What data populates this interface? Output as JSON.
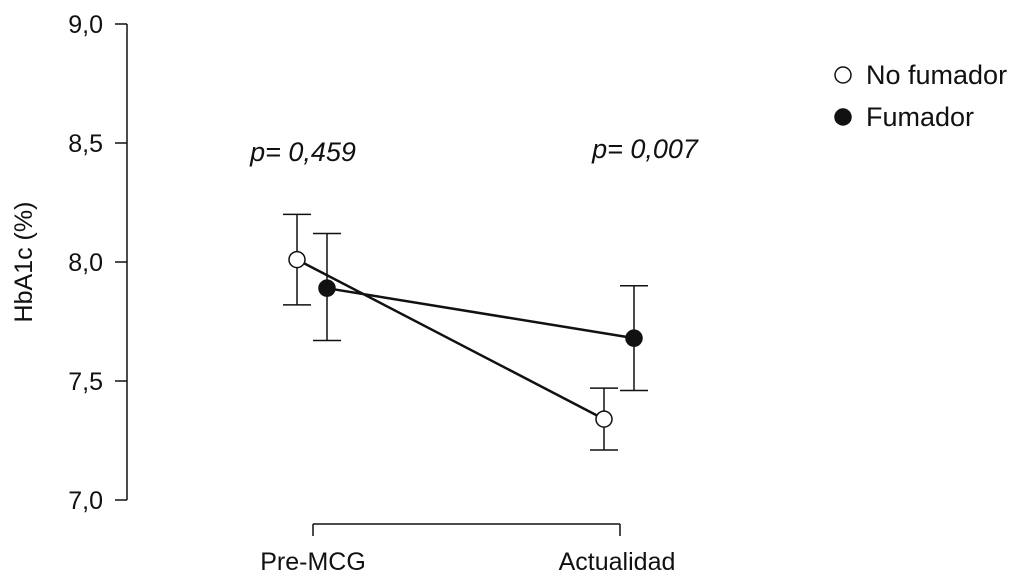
{
  "chart_data": {
    "type": "line",
    "ylabel": "HbA1c (%)",
    "xlabel": "",
    "categories": [
      "Pre-MCG",
      "Actualidad"
    ],
    "ylim": [
      7.0,
      9.0
    ],
    "yticks": [
      "7,0",
      "7,5",
      "8,0",
      "8,5",
      "9,0"
    ],
    "ytick_values": [
      7.0,
      7.5,
      8.0,
      8.5,
      9.0
    ],
    "grid": false,
    "legend_position": "top-right",
    "series": [
      {
        "name": "No fumador",
        "marker": "open-circle",
        "values": [
          8.01,
          7.34
        ],
        "error_low": [
          7.82,
          7.21
        ],
        "error_high": [
          8.2,
          7.47
        ]
      },
      {
        "name": "Fumador",
        "marker": "filled-circle",
        "values": [
          7.89,
          7.68
        ],
        "error_low": [
          7.67,
          7.46
        ],
        "error_high": [
          8.12,
          7.9
        ]
      }
    ],
    "annotations": [
      "p= 0,459",
      "p= 0,007"
    ]
  },
  "colors": {
    "line": "#111111",
    "open_marker_fill": "#ffffff",
    "filled_marker_fill": "#111111"
  }
}
